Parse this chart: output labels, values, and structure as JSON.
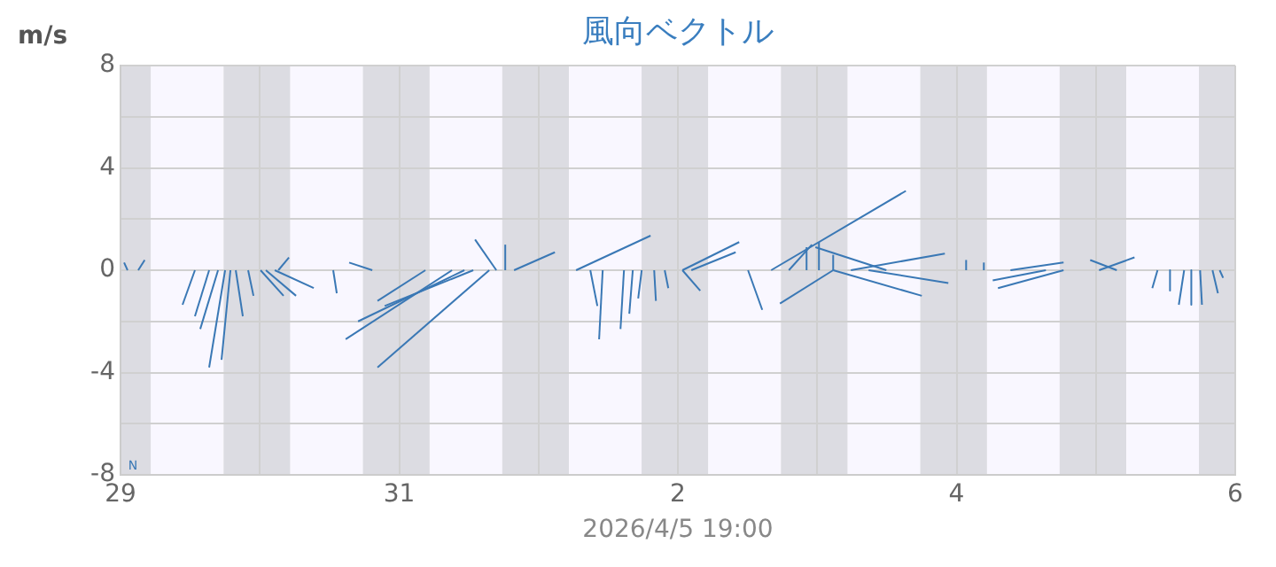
{
  "chart_data": {
    "type": "line",
    "title": "風向ベクトル",
    "ylabel": "m/s",
    "xlabel": "2026/4/5 19:00",
    "annotations": [
      "N"
    ],
    "xlim": [
      "2026-03-29",
      "2026-04-06"
    ],
    "xticks": [
      {
        "value": "2026-03-29",
        "label": "29"
      },
      {
        "value": "2026-03-30",
        "label": null
      },
      {
        "value": "2026-03-31",
        "label": "31"
      },
      {
        "value": "2026-04-01",
        "label": null
      },
      {
        "value": "2026-04-02",
        "label": "2"
      },
      {
        "value": "2026-04-03",
        "label": null
      },
      {
        "value": "2026-04-04",
        "label": "4"
      },
      {
        "value": "2026-04-05",
        "label": null
      },
      {
        "value": "2026-04-06",
        "label": "6"
      }
    ],
    "ylim": [
      -8,
      8
    ],
    "yticks": [
      -8,
      {
        "value": -6,
        "label": null
      },
      -4,
      {
        "value": -2,
        "label": null
      },
      0,
      {
        "value": 2,
        "label": null
      },
      4,
      {
        "value": 6,
        "label": null
      },
      8
    ],
    "grid": true,
    "marker": "none",
    "line_style": "solid",
    "bands": [
      {
        "axis": "x",
        "from": "2026-03-29T00:00",
        "to": "2026-03-29T05:15",
        "color": "#dcdce2"
      },
      {
        "axis": "x",
        "from": "2026-03-29T05:15",
        "to": "2026-03-29T17:45",
        "color": "#f9f7ff"
      },
      {
        "axis": "x",
        "from": "2026-03-29T17:45",
        "to": "2026-03-30T05:15",
        "color": "#dcdce2"
      },
      {
        "axis": "x",
        "from": "2026-03-30T05:15",
        "to": "2026-03-30T17:45",
        "color": "#f9f7ff"
      },
      {
        "axis": "x",
        "from": "2026-03-30T17:45",
        "to": "2026-03-31T05:15",
        "color": "#dcdce2"
      },
      {
        "axis": "x",
        "from": "2026-03-31T05:15",
        "to": "2026-03-31T17:45",
        "color": "#f9f7ff"
      },
      {
        "axis": "x",
        "from": "2026-03-31T17:45",
        "to": "2026-04-01T05:15",
        "color": "#dcdce2"
      },
      {
        "axis": "x",
        "from": "2026-04-01T05:15",
        "to": "2026-04-01T17:45",
        "color": "#f9f7ff"
      },
      {
        "axis": "x",
        "from": "2026-04-01T17:45",
        "to": "2026-04-02T05:15",
        "color": "#dcdce2"
      },
      {
        "axis": "x",
        "from": "2026-04-02T05:15",
        "to": "2026-04-02T17:45",
        "color": "#f9f7ff"
      },
      {
        "axis": "x",
        "from": "2026-04-02T17:45",
        "to": "2026-04-03T05:15",
        "color": "#dcdce2"
      },
      {
        "axis": "x",
        "from": "2026-04-03T05:15",
        "to": "2026-04-03T17:45",
        "color": "#f9f7ff"
      },
      {
        "axis": "x",
        "from": "2026-04-03T17:45",
        "to": "2026-04-04T05:15",
        "color": "#dcdce2"
      },
      {
        "axis": "x",
        "from": "2026-04-04T05:15",
        "to": "2026-04-04T17:45",
        "color": "#f9f7ff"
      },
      {
        "axis": "x",
        "from": "2026-04-04T17:45",
        "to": "2026-04-05T05:15",
        "color": "#dcdce2"
      },
      {
        "axis": "x",
        "from": "2026-04-05T05:15",
        "to": "2026-04-05T17:45",
        "color": "#f9f7ff"
      },
      {
        "axis": "x",
        "from": "2026-04-05T17:45",
        "to": "2026-04-06T00:00",
        "color": "#dcdce2"
      }
    ],
    "series": [
      {
        "color": "#3a78b5",
        "x": [
          "2026-03-29T01:13",
          "2026-03-29T00:37"
        ],
        "values": [
          0,
          0.3
        ]
      },
      {
        "color": "#3a78b5",
        "x": [
          "2026-03-29T03:03",
          "2026-03-29T04:10"
        ],
        "values": [
          0,
          0.4
        ]
      },
      {
        "color": "#3a78b5",
        "x": [
          "2026-03-29T12:49",
          "2026-03-29T10:41"
        ],
        "values": [
          0,
          -1.35
        ]
      },
      {
        "color": "#3a78b5",
        "x": [
          "2026-03-29T15:16",
          "2026-03-29T12:49"
        ],
        "values": [
          0,
          -1.8
        ]
      },
      {
        "color": "#3a78b5",
        "x": [
          "2026-03-29T16:48",
          "2026-03-29T13:44"
        ],
        "values": [
          0,
          -2.3
        ]
      },
      {
        "color": "#3a78b5",
        "x": [
          "2026-03-29T18:01",
          "2026-03-29T15:16"
        ],
        "values": [
          0,
          -3.8
        ]
      },
      {
        "color": "#3a78b5",
        "x": [
          "2026-03-29T18:56",
          "2026-03-29T17:24"
        ],
        "values": [
          0,
          -3.5
        ]
      },
      {
        "color": "#3a78b5",
        "x": [
          "2026-03-29T19:51",
          "2026-03-29T21:04"
        ],
        "values": [
          0,
          -1.8
        ]
      },
      {
        "color": "#3a78b5",
        "x": [
          "2026-03-29T21:59",
          "2026-03-29T22:54"
        ],
        "values": [
          0,
          -1.0
        ]
      },
      {
        "color": "#3a78b5",
        "x": [
          "2026-03-30T00:07",
          "2026-03-30T04:05"
        ],
        "values": [
          0,
          -1.0
        ]
      },
      {
        "color": "#3a78b5",
        "x": [
          "2026-03-30T01:02",
          "2026-03-30T06:14"
        ],
        "values": [
          0,
          -1.0
        ]
      },
      {
        "color": "#3a78b5",
        "x": [
          "2026-03-30T02:34",
          "2026-03-30T09:17"
        ],
        "values": [
          0,
          -0.7
        ]
      },
      {
        "color": "#3a78b5",
        "x": [
          "2026-03-30T03:11",
          "2026-03-30T05:01"
        ],
        "values": [
          0,
          0.5
        ]
      },
      {
        "color": "#3a78b5",
        "x": [
          "2026-03-30T12:38",
          "2026-03-30T13:15"
        ],
        "values": [
          0,
          -0.9
        ]
      },
      {
        "color": "#3a78b5",
        "x": [
          "2026-03-30T19:22",
          "2026-03-30T15:23"
        ],
        "values": [
          0,
          0.3
        ]
      },
      {
        "color": "#3a78b5",
        "x": [
          "2026-03-31T04:31",
          "2026-03-30T20:16"
        ],
        "values": [
          0,
          -1.2
        ]
      },
      {
        "color": "#3a78b5",
        "x": [
          "2026-03-31T09:06",
          "2026-03-30T14:47"
        ],
        "values": [
          0,
          -2.7
        ]
      },
      {
        "color": "#3a78b5",
        "x": [
          "2026-03-31T11:14",
          "2026-03-30T16:55"
        ],
        "values": [
          0,
          -2.0
        ]
      },
      {
        "color": "#3a78b5",
        "x": [
          "2026-03-31T12:46",
          "2026-03-30T21:30"
        ],
        "values": [
          0,
          -1.4
        ]
      },
      {
        "color": "#3a78b5",
        "x": [
          "2026-03-31T15:31",
          "2026-03-30T20:16"
        ],
        "values": [
          0,
          -3.8
        ]
      },
      {
        "color": "#3a78b5",
        "x": [
          "2026-03-31T16:44",
          "2026-03-31T13:04"
        ],
        "values": [
          0,
          1.2
        ]
      },
      {
        "color": "#3a78b5",
        "x": [
          "2026-03-31T18:16",
          "2026-03-31T18:16"
        ],
        "values": [
          0,
          1.0
        ]
      },
      {
        "color": "#3a78b5",
        "x": [
          "2026-03-31T19:47",
          "2026-04-01T02:49"
        ],
        "values": [
          0,
          0.7
        ]
      },
      {
        "color": "#3a78b5",
        "x": [
          "2026-04-01T06:28",
          "2026-04-01T19:18"
        ],
        "values": [
          0,
          1.35
        ]
      },
      {
        "color": "#3a78b5",
        "x": [
          "2026-04-01T08:55",
          "2026-04-01T10:08"
        ],
        "values": [
          0,
          -1.4
        ]
      },
      {
        "color": "#3a78b5",
        "x": [
          "2026-04-01T11:03",
          "2026-04-01T10:26"
        ],
        "values": [
          0,
          -2.7
        ]
      },
      {
        "color": "#3a78b5",
        "x": [
          "2026-04-01T14:43",
          "2026-04-01T14:07"
        ],
        "values": [
          0,
          -2.3
        ]
      },
      {
        "color": "#3a78b5",
        "x": [
          "2026-04-01T16:14",
          "2026-04-01T15:38"
        ],
        "values": [
          0,
          -1.7
        ]
      },
      {
        "color": "#3a78b5",
        "x": [
          "2026-04-01T17:46",
          "2026-04-01T17:10"
        ],
        "values": [
          0,
          -1.1
        ]
      },
      {
        "color": "#3a78b5",
        "x": [
          "2026-04-01T19:55",
          "2026-04-01T20:13"
        ],
        "values": [
          0,
          -1.2
        ]
      },
      {
        "color": "#3a78b5",
        "x": [
          "2026-04-01T21:44",
          "2026-04-01T22:21"
        ],
        "values": [
          0,
          -0.7
        ]
      },
      {
        "color": "#3a78b5",
        "x": [
          "2026-04-02T00:47",
          "2026-04-02T10:34"
        ],
        "values": [
          0,
          1.1
        ]
      },
      {
        "color": "#3a78b5",
        "x": [
          "2026-04-02T02:19",
          "2026-04-02T09:57"
        ],
        "values": [
          0,
          0.7
        ]
      },
      {
        "color": "#3a78b5",
        "x": [
          "2026-04-02T00:47",
          "2026-04-02T03:51"
        ],
        "values": [
          0,
          -0.8
        ]
      },
      {
        "color": "#3a78b5",
        "x": [
          "2026-04-02T12:05",
          "2026-04-02T14:32"
        ],
        "values": [
          0,
          -1.55
        ]
      },
      {
        "color": "#3a78b5",
        "x": [
          "2026-04-02T16:04",
          "2026-04-03T15:16"
        ],
        "values": [
          0,
          3.1
        ]
      },
      {
        "color": "#3a78b5",
        "x": [
          "2026-04-02T19:07",
          "2026-04-02T23:05"
        ],
        "values": [
          0,
          1.0
        ]
      },
      {
        "color": "#3a78b5",
        "x": [
          "2026-04-02T22:10",
          "2026-04-02T22:10"
        ],
        "values": [
          0,
          0.9
        ]
      },
      {
        "color": "#3a78b5",
        "x": [
          "2026-04-03T00:18",
          "2026-04-03T00:18"
        ],
        "values": [
          0,
          1.1
        ]
      },
      {
        "color": "#3a78b5",
        "x": [
          "2026-04-03T02:45",
          "2026-04-03T02:45"
        ],
        "values": [
          0,
          0.6
        ]
      },
      {
        "color": "#3a78b5",
        "x": [
          "2026-04-03T05:48",
          "2026-04-03T21:59"
        ],
        "values": [
          0,
          0.65
        ]
      },
      {
        "color": "#3a78b5",
        "x": [
          "2026-04-03T08:51",
          "2026-04-03T22:35"
        ],
        "values": [
          0,
          -0.5
        ]
      },
      {
        "color": "#3a78b5",
        "x": [
          "2026-04-03T02:45",
          "2026-04-03T18:01"
        ],
        "values": [
          0,
          -1.0
        ]
      },
      {
        "color": "#3a78b5",
        "x": [
          "2026-04-03T02:45",
          "2026-04-02T17:35"
        ],
        "values": [
          0,
          -1.3
        ]
      },
      {
        "color": "#3a78b5",
        "x": [
          "2026-04-03T11:55",
          "2026-04-02T23:41"
        ],
        "values": [
          0,
          0.9
        ]
      },
      {
        "color": "#3a78b5",
        "x": [
          "2026-04-04T01:39",
          "2026-04-04T01:39"
        ],
        "values": [
          0,
          0.4
        ]
      },
      {
        "color": "#3a78b5",
        "x": [
          "2026-04-04T04:42",
          "2026-04-04T04:42"
        ],
        "values": [
          0,
          0.3
        ]
      },
      {
        "color": "#3a78b5",
        "x": [
          "2026-04-04T18:26",
          "2026-04-04T07:08"
        ],
        "values": [
          0,
          -0.7
        ]
      },
      {
        "color": "#3a78b5",
        "x": [
          "2026-04-04T09:17",
          "2026-04-04T18:26"
        ],
        "values": [
          0,
          0.3
        ]
      },
      {
        "color": "#3a78b5",
        "x": [
          "2026-04-04T15:23",
          "2026-04-04T06:14"
        ],
        "values": [
          0,
          -0.4
        ]
      },
      {
        "color": "#3a78b5",
        "x": [
          "2026-04-05T00:33",
          "2026-04-05T06:39"
        ],
        "values": [
          0,
          0.5
        ]
      },
      {
        "color": "#3a78b5",
        "x": [
          "2026-04-05T03:36",
          "2026-04-04T23:01"
        ],
        "values": [
          0,
          0.4
        ]
      },
      {
        "color": "#3a78b5",
        "x": [
          "2026-04-05T10:37",
          "2026-04-05T09:43"
        ],
        "values": [
          0,
          -0.7
        ]
      },
      {
        "color": "#3a78b5",
        "x": [
          "2026-04-05T12:46",
          "2026-04-05T12:46"
        ],
        "values": [
          0,
          -0.8
        ]
      },
      {
        "color": "#3a78b5",
        "x": [
          "2026-04-05T15:12",
          "2026-04-05T14:17"
        ],
        "values": [
          0,
          -1.35
        ]
      },
      {
        "color": "#3a78b5",
        "x": [
          "2026-04-05T16:26",
          "2026-04-05T16:26"
        ],
        "values": [
          0,
          -1.35
        ]
      },
      {
        "color": "#3a78b5",
        "x": [
          "2026-04-05T17:57",
          "2026-04-05T18:16"
        ],
        "values": [
          0,
          -1.35
        ]
      },
      {
        "color": "#3a78b5",
        "x": [
          "2026-04-05T20:05",
          "2026-04-05T21:01"
        ],
        "values": [
          0,
          -0.9
        ]
      },
      {
        "color": "#3a78b5",
        "x": [
          "2026-04-05T21:19",
          "2026-04-05T21:55"
        ],
        "values": [
          0,
          -0.3
        ]
      }
    ]
  }
}
